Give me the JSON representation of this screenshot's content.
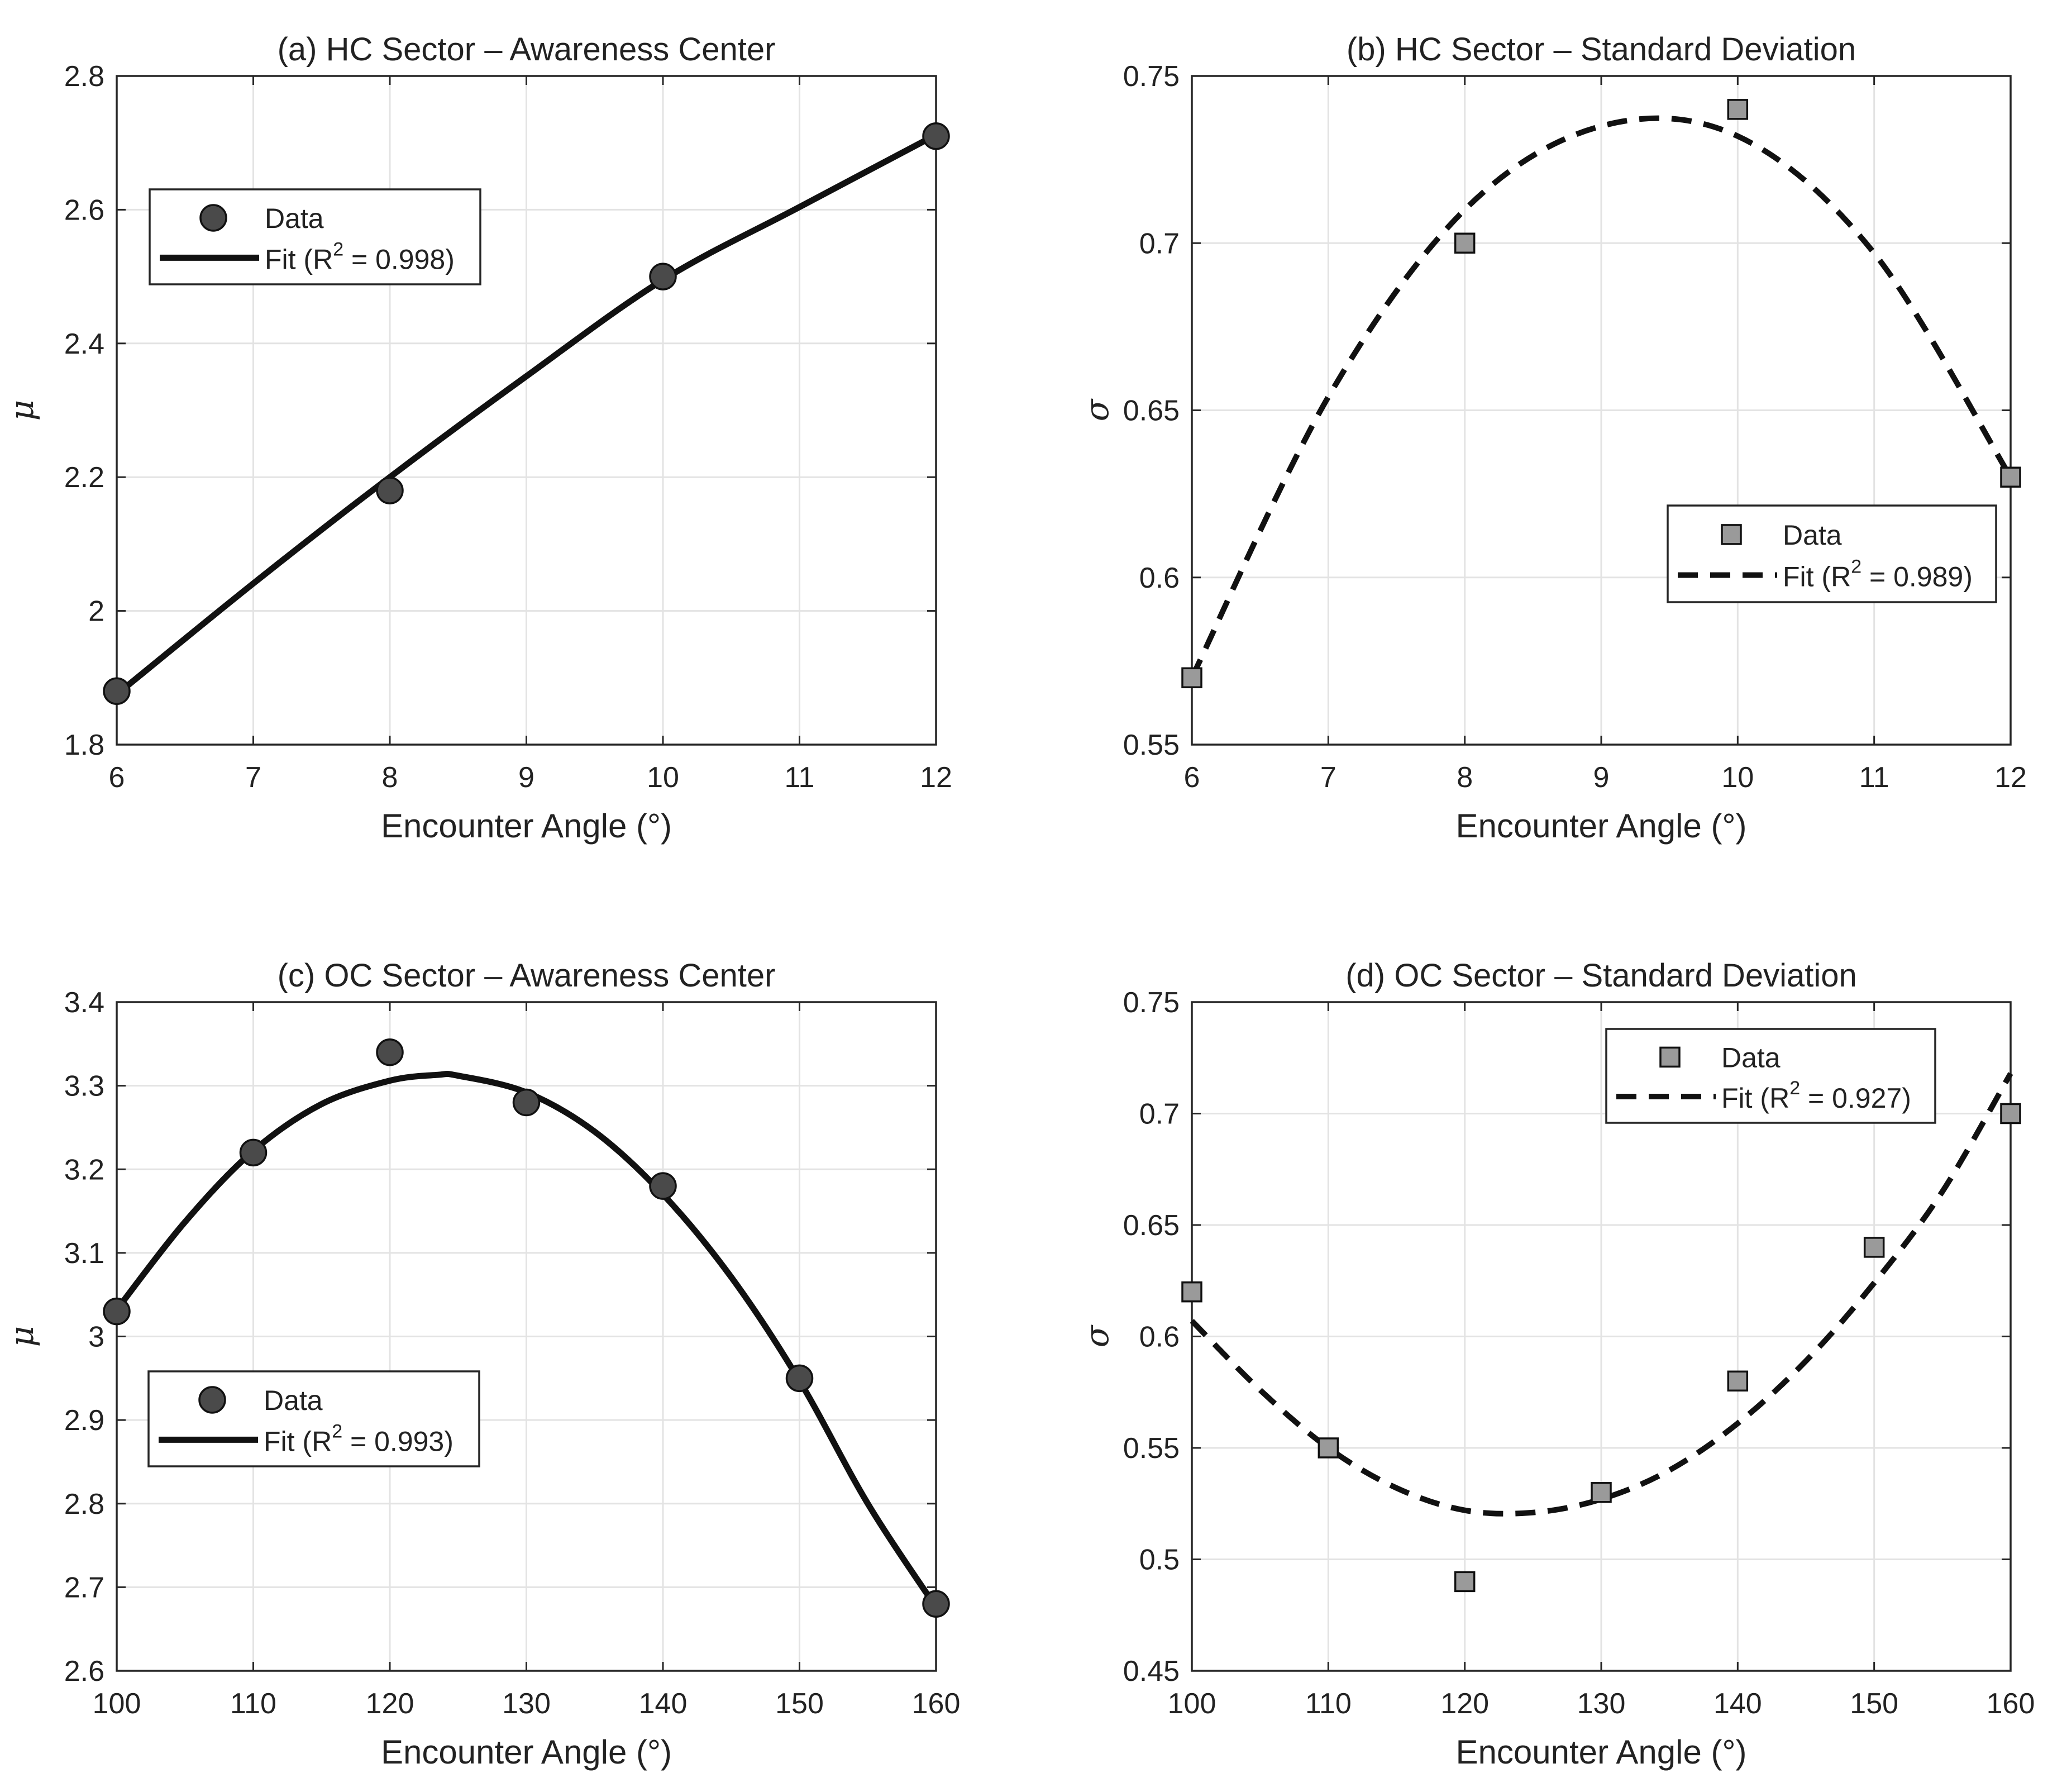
{
  "chart_data": [
    {
      "id": "a",
      "type": "scatter",
      "title": "(a) HC Sector  – Awareness Center",
      "xlabel": "Encounter Angle (°)",
      "ylabel": "μ",
      "xlim": [
        6,
        12
      ],
      "ylim": [
        1.8,
        2.8
      ],
      "xticks": [
        6,
        7,
        8,
        9,
        10,
        11,
        12
      ],
      "yticks": [
        1.8,
        2,
        2.2,
        2.4,
        2.6,
        2.8
      ],
      "grid": true,
      "marker": "circle",
      "marker_color": "#4a4a4a",
      "fit_style": "solid",
      "legend_position": "upper-left",
      "legend": {
        "data": "Data",
        "fit_prefix": "Fit (R",
        "fit_sup": "2",
        "fit_suffix": " = 0.998)"
      },
      "x": [
        6,
        8,
        10,
        12
      ],
      "y": [
        1.88,
        2.18,
        2.5,
        2.71
      ],
      "fit": {
        "x": [
          6,
          7,
          8,
          9,
          10,
          11,
          12
        ],
        "y": [
          1.875,
          2.041,
          2.2,
          2.351,
          2.495,
          2.604,
          2.712
        ]
      }
    },
    {
      "id": "b",
      "type": "scatter",
      "title": "(b) HC Sector  – Standard Deviation",
      "xlabel": "Encounter Angle (°)",
      "ylabel": "σ",
      "xlim": [
        6,
        12
      ],
      "ylim": [
        0.55,
        0.75
      ],
      "xticks": [
        6,
        7,
        8,
        9,
        10,
        11,
        12
      ],
      "yticks": [
        0.55,
        0.6,
        0.65,
        0.7,
        0.75
      ],
      "grid": true,
      "marker": "square",
      "marker_color": "#9a9a9a",
      "fit_style": "dashed",
      "legend_position": "lower-right",
      "legend": {
        "data": "Data",
        "fit_prefix": "Fit (R",
        "fit_sup": "2",
        "fit_suffix": " = 0.989)"
      },
      "x": [
        6,
        8,
        10,
        12
      ],
      "y": [
        0.57,
        0.7,
        0.74,
        0.63
      ],
      "fit": {
        "x": [
          6,
          7,
          8,
          9,
          10,
          11,
          12
        ],
        "y": [
          0.57,
          0.654,
          0.71,
          0.735,
          0.732,
          0.697,
          0.63
        ]
      }
    },
    {
      "id": "c",
      "type": "scatter",
      "title": "(c) OC Sector  – Awareness Center",
      "xlabel": "Encounter Angle (°)",
      "ylabel": "μ",
      "xlim": [
        100,
        160
      ],
      "ylim": [
        2.6,
        3.4
      ],
      "xticks": [
        100,
        110,
        120,
        130,
        140,
        150,
        160
      ],
      "yticks": [
        2.6,
        2.7,
        2.8,
        2.9,
        3,
        3.1,
        3.2,
        3.3,
        3.4
      ],
      "grid": true,
      "marker": "circle",
      "marker_color": "#4a4a4a",
      "fit_style": "solid",
      "legend_position": "lower-left",
      "legend": {
        "data": "Data",
        "fit_prefix": "Fit (R",
        "fit_sup": "2",
        "fit_suffix": " = 0.993)"
      },
      "x": [
        100,
        110,
        120,
        130,
        140,
        150,
        160
      ],
      "y": [
        3.03,
        3.22,
        3.34,
        3.28,
        3.18,
        2.95,
        2.68
      ],
      "fit": {
        "x": [
          100,
          105,
          110,
          115,
          120,
          123.5,
          125,
          130,
          135,
          140,
          145,
          150,
          155,
          160
        ],
        "y": [
          3.032,
          3.137,
          3.222,
          3.278,
          3.306,
          3.313,
          3.312,
          3.292,
          3.245,
          3.17,
          3.071,
          2.947,
          2.8,
          2.676
        ]
      }
    },
    {
      "id": "d",
      "type": "scatter",
      "title": "(d) OC Sector  – Standard Deviation",
      "xlabel": "Encounter Angle (°)",
      "ylabel": "σ",
      "xlim": [
        100,
        160
      ],
      "ylim": [
        0.45,
        0.75
      ],
      "xticks": [
        100,
        110,
        120,
        130,
        140,
        150,
        160
      ],
      "yticks": [
        0.45,
        0.5,
        0.55,
        0.6,
        0.65,
        0.7,
        0.75
      ],
      "grid": true,
      "marker": "square",
      "marker_color": "#9a9a9a",
      "fit_style": "dashed",
      "legend_position": "upper-right",
      "legend": {
        "data": "Data",
        "fit_prefix": "Fit (R",
        "fit_sup": "2",
        "fit_suffix": " = 0.927)"
      },
      "x": [
        100,
        110,
        120,
        130,
        140,
        150,
        160
      ],
      "y": [
        0.62,
        0.55,
        0.49,
        0.53,
        0.58,
        0.64,
        0.7
      ],
      "fit": {
        "x": [
          100,
          105,
          110,
          115,
          120,
          125,
          130,
          135,
          140,
          145,
          150,
          155,
          160
        ],
        "y": [
          0.607,
          0.576,
          0.55,
          0.532,
          0.522,
          0.521,
          0.527,
          0.54,
          0.561,
          0.589,
          0.624,
          0.665,
          0.718
        ]
      }
    }
  ]
}
